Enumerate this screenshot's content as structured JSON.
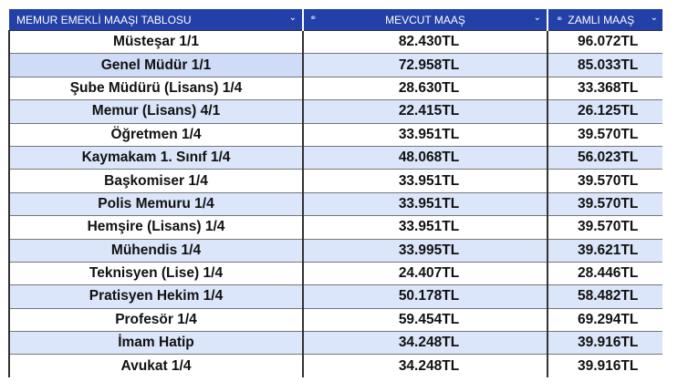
{
  "table": {
    "headers": [
      {
        "label": "MEMUR EMEKLİ MAAŞI TABLOSU",
        "icon": null
      },
      {
        "label": "MEVCUT MAAŞ",
        "icon": "link-icon"
      },
      {
        "label": "ZAMLI MAAŞ",
        "icon": "link-icon"
      }
    ],
    "rows": [
      {
        "title": "Müsteşar 1/1",
        "current": "82.430TL",
        "raised": "96.072TL"
      },
      {
        "title": "Genel Müdür 1/1",
        "current": "72.958TL",
        "raised": "85.033TL"
      },
      {
        "title": "Şube Müdürü (Lisans) 1/4",
        "current": "28.630TL",
        "raised": "33.368TL"
      },
      {
        "title": "Memur (Lisans) 4/1",
        "current": "22.415TL",
        "raised": "26.125TL"
      },
      {
        "title": "Öğretmen 1/4",
        "current": "33.951TL",
        "raised": "39.570TL"
      },
      {
        "title": "Kaymakam 1. Sınıf 1/4",
        "current": "48.068TL",
        "raised": "56.023TL"
      },
      {
        "title": "Başkomiser 1/4",
        "current": "33.951TL",
        "raised": "39.570TL"
      },
      {
        "title": "Polis Memuru 1/4",
        "current": "33.951TL",
        "raised": "39.570TL"
      },
      {
        "title": "Hemşire (Lisans) 1/4",
        "current": "33.951TL",
        "raised": "39.570TL"
      },
      {
        "title": "Mühendis 1/4",
        "current": "33.995TL",
        "raised": "39.621TL"
      },
      {
        "title": "Teknisyen (Lise) 1/4",
        "current": "24.407TL",
        "raised": "28.446TL"
      },
      {
        "title": "Pratisyen Hekim 1/4",
        "current": "50.178TL",
        "raised": "58.482TL"
      },
      {
        "title": "Profesör 1/4",
        "current": "59.454TL",
        "raised": "69.294TL"
      },
      {
        "title": "İmam Hatip",
        "current": "34.248TL",
        "raised": "39.916TL"
      },
      {
        "title": "Avukat 1/4",
        "current": "34.248TL",
        "raised": "39.916TL"
      }
    ]
  },
  "colors": {
    "header_bg": "#233fa8",
    "header_text": "#ffffff",
    "alt_row_bg": "#dbe6fa",
    "text": "#111111"
  }
}
